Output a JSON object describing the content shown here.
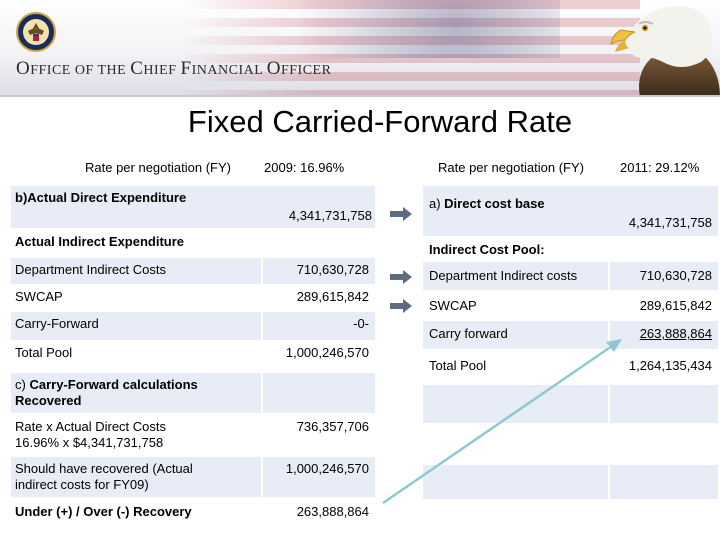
{
  "header": {
    "office_title_parts": [
      {
        "cap": "O",
        "rest": "FFICE OF THE "
      },
      {
        "cap": "C",
        "rest": "HIEF "
      },
      {
        "cap": "F",
        "rest": "INANCIAL "
      },
      {
        "cap": "O",
        "rest": "FFICER"
      }
    ]
  },
  "title": "Fixed Carried-Forward Rate",
  "left": {
    "col_header": "Rate per negotiation (FY)",
    "rate_header": "2009: 16.96%",
    "rows": [
      {
        "label": "b)Actual Direct Expenditure",
        "value": "4,341,731,758"
      },
      {
        "label": "Actual Indirect Expenditure",
        "value": ""
      },
      {
        "label": "Department Indirect Costs",
        "value": "710,630,728"
      },
      {
        "label": "SWCAP",
        "value": "289,615,842"
      },
      {
        "label": "Carry-Forward",
        "value": "-0-"
      },
      {
        "label": "Total Pool",
        "value": "1,000,246,570"
      }
    ],
    "recovered": {
      "heading_prefix": "c) ",
      "heading": "Carry-Forward calculations Recovered",
      "rows": [
        {
          "label": "Rate x Actual Direct Costs 16.96% x $4,341,731,758",
          "value": "736,357,706"
        },
        {
          "label": "Should have recovered (Actual indirect costs for FY09)",
          "value": "1,000,246,570"
        },
        {
          "label": "Under (+) / Over (-) Recovery",
          "value": "263,888,864"
        }
      ]
    }
  },
  "right": {
    "col_header": "Rate per negotiation (FY)",
    "rate_header": "2011: 29.12%",
    "direct_label_prefix": "a) ",
    "direct_label": "Direct cost base",
    "direct_value": "4,341,731,758",
    "pool_heading": "Indirect Cost Pool:",
    "rows": [
      {
        "label": "Department Indirect costs",
        "value": "710,630,728"
      },
      {
        "label": "SWCAP",
        "value": "289,615,842"
      },
      {
        "label": "Carry forward",
        "value": "263,888,864"
      },
      {
        "label": "Total Pool",
        "value": "1,264,135,434"
      }
    ]
  },
  "colors": {
    "cell_fill": "#e8ecf6",
    "arrow": "#5f6b80",
    "connector": "#8ec9d2"
  }
}
